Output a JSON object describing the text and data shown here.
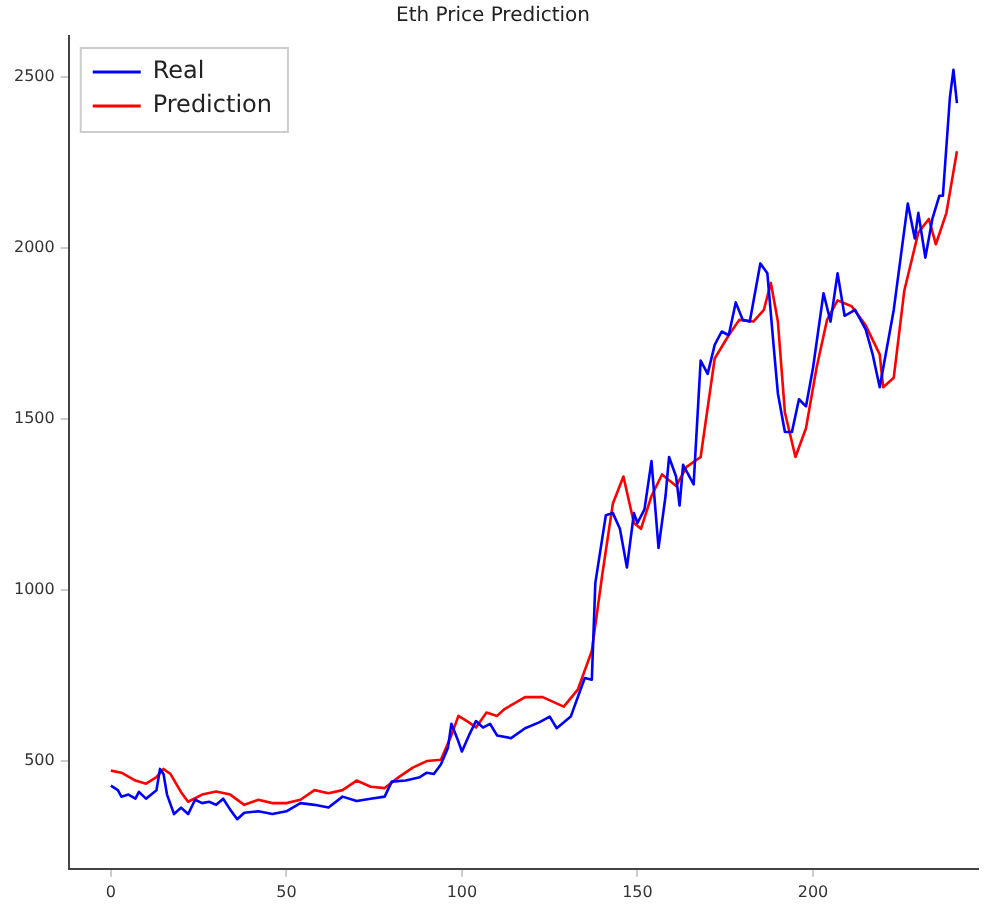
{
  "chart_data": {
    "type": "line",
    "title": "Eth Price Prediction",
    "legend": "top left",
    "grid": false,
    "marker": "none",
    "line_style": "solid",
    "xlim": [
      -12,
      247
    ],
    "xticks": [
      0,
      50,
      100,
      150,
      200
    ],
    "ylim": [
      185,
      2620
    ],
    "yticks": [
      500,
      1000,
      1500,
      2000,
      2500
    ],
    "series": [
      {
        "name": "Real",
        "color": "#0000ff",
        "x": [
          0,
          2,
          3,
          5,
          7,
          8,
          10,
          13,
          14,
          15,
          16,
          18,
          20,
          22,
          24,
          26,
          28,
          30,
          32,
          34,
          36,
          38,
          42,
          46,
          50,
          54,
          58,
          62,
          66,
          70,
          74,
          78,
          80,
          84,
          88,
          90,
          92,
          94,
          96,
          97,
          99,
          100,
          102,
          104,
          106,
          108,
          110,
          114,
          118,
          122,
          125,
          127,
          131,
          134,
          135,
          137,
          138,
          141,
          143,
          145,
          147,
          149,
          150,
          152,
          154,
          156,
          158,
          159,
          161,
          162,
          163,
          166,
          168,
          170,
          172,
          174,
          176,
          178,
          180,
          182,
          185,
          187,
          189,
          190,
          192,
          194,
          196,
          198,
          200,
          203,
          205,
          207,
          209,
          212,
          215,
          217,
          219,
          220,
          223,
          227,
          229,
          230,
          232,
          234,
          236,
          237,
          239,
          240,
          241
        ],
        "values": [
          428,
          415,
          396,
          402,
          390,
          410,
          390,
          415,
          477,
          462,
          402,
          345,
          364,
          345,
          387,
          377,
          381,
          372,
          390,
          358,
          330,
          349,
          353,
          345,
          353,
          377,
          372,
          364,
          396,
          383,
          390,
          396,
          440,
          443,
          453,
          466,
          462,
          490,
          538,
          609,
          557,
          528,
          575,
          617,
          598,
          609,
          575,
          567,
          596,
          613,
          630,
          596,
          630,
          715,
          743,
          738,
          1021,
          1219,
          1225,
          1179,
          1066,
          1225,
          1196,
          1236,
          1377,
          1123,
          1275,
          1389,
          1332,
          1247,
          1366,
          1309,
          1671,
          1632,
          1717,
          1756,
          1745,
          1841,
          1790,
          1785,
          1955,
          1926,
          1689,
          1575,
          1462,
          1462,
          1558,
          1537,
          1649,
          1868,
          1785,
          1926,
          1802,
          1819,
          1762,
          1689,
          1593,
          1649,
          1819,
          2130,
          2028,
          2103,
          1972,
          2085,
          2153,
          2153,
          2441,
          2521,
          2424
        ]
      },
      {
        "name": "Prediction",
        "color": "#ff0000",
        "x": [
          0,
          3,
          7,
          10,
          13,
          15,
          17,
          20,
          22,
          26,
          30,
          34,
          38,
          42,
          46,
          50,
          54,
          58,
          62,
          66,
          70,
          74,
          78,
          82,
          86,
          90,
          94,
          97,
          99,
          102,
          104,
          107,
          110,
          112,
          118,
          123,
          129,
          133,
          137,
          140,
          143,
          146,
          149,
          151,
          154,
          157,
          161,
          164,
          168,
          172,
          176,
          179,
          183,
          186,
          188,
          190,
          192,
          195,
          198,
          201,
          204,
          207,
          211,
          215,
          219,
          220,
          223,
          226,
          230,
          233,
          235,
          238,
          241
        ],
        "values": [
          472,
          466,
          443,
          434,
          453,
          477,
          462,
          409,
          381,
          402,
          411,
          402,
          372,
          387,
          377,
          377,
          387,
          415,
          406,
          415,
          443,
          425,
          421,
          453,
          481,
          500,
          504,
          575,
          632,
          613,
          598,
          642,
          632,
          651,
          687,
          687,
          659,
          709,
          822,
          1047,
          1253,
          1332,
          1196,
          1179,
          1275,
          1338,
          1304,
          1360,
          1389,
          1677,
          1745,
          1790,
          1785,
          1819,
          1898,
          1785,
          1519,
          1389,
          1473,
          1649,
          1790,
          1847,
          1830,
          1774,
          1689,
          1593,
          1621,
          1875,
          2045,
          2085,
          2011,
          2103,
          2283
        ]
      }
    ]
  }
}
